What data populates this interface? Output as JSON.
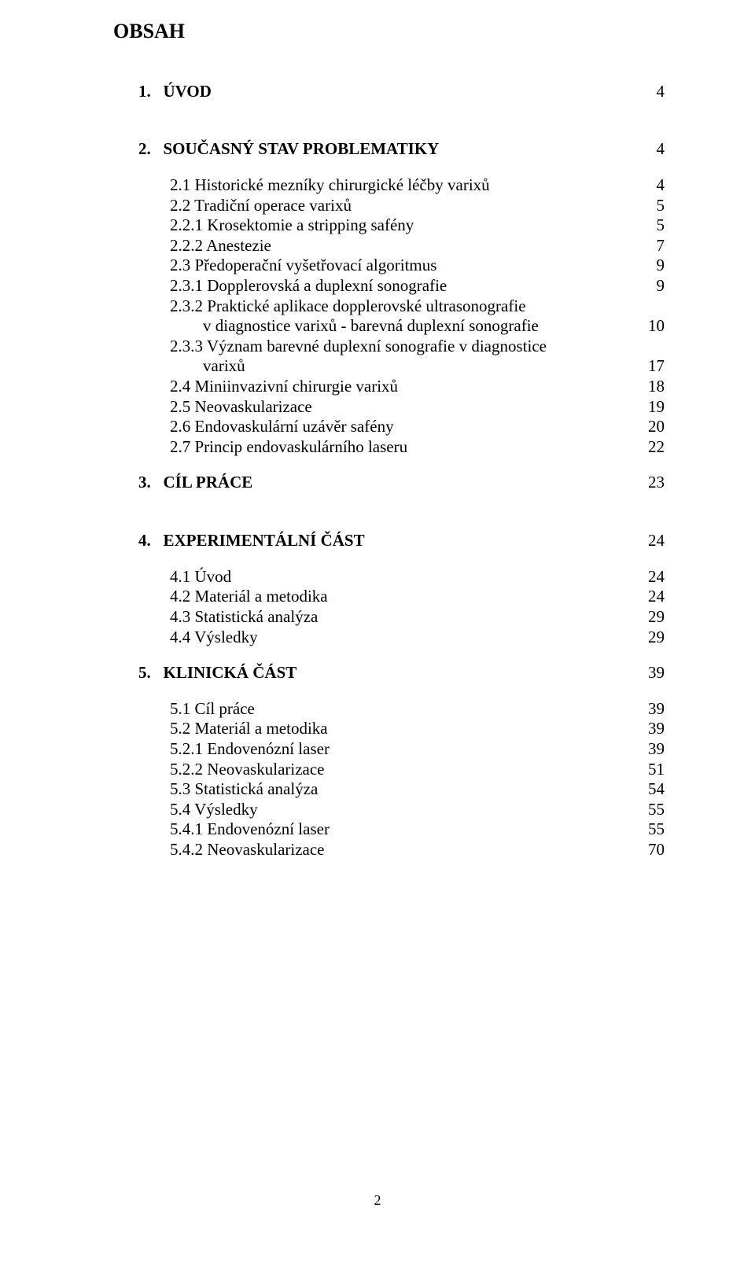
{
  "title": "OBSAH",
  "footer_page": "2",
  "colors": {
    "background": "#ffffff",
    "text": "#000000"
  },
  "typography": {
    "font_family": "Times New Roman",
    "body_fontsize_pt": 16,
    "title_fontsize_pt": 20,
    "title_weight": "bold",
    "l1_weight": "bold"
  },
  "toc": {
    "s1": {
      "num": "1.",
      "label": "ÚVOD",
      "page": "4"
    },
    "s2": {
      "num": "2.",
      "label": "SOUČASNÝ STAV PROBLEMATIKY",
      "page": "4",
      "i21": {
        "label": "2.1 Historické mezníky chirurgické léčby varixů",
        "page": "4"
      },
      "i22": {
        "label": "2.2 Tradiční operace varixů",
        "page": "5"
      },
      "i221": {
        "label": "2.2.1 Krosektomie a stripping safény",
        "page": "5"
      },
      "i222": {
        "label": "2.2.2 Anestezie",
        "page": "7"
      },
      "i23": {
        "label": "2.3 Předoperační vyšetřovací algoritmus",
        "page": "9"
      },
      "i231": {
        "label": "2.3.1 Dopplerovská a duplexní sonografie",
        "page": "9"
      },
      "i232a": {
        "label": "2.3.2 Praktické aplikace dopplerovské ultrasonografie"
      },
      "i232b": {
        "label": "v diagnostice varixů - barevná duplexní sonografie",
        "page": "10"
      },
      "i233a": {
        "label": "2.3.3 Význam barevné duplexní sonografie v diagnostice"
      },
      "i233b": {
        "label": "varixů",
        "page": "17"
      },
      "i24": {
        "label": "2.4 Miniinvazivní chirurgie varixů",
        "page": "18"
      },
      "i25": {
        "label": "2.5 Neovaskularizace",
        "page": "19"
      },
      "i26": {
        "label": "2.6 Endovaskulární uzávěr safény",
        "page": "20"
      },
      "i27": {
        "label": "2.7 Princip endovaskulárního laseru",
        "page": "22"
      }
    },
    "s3": {
      "num": "3.",
      "label": "CÍL  PRÁCE",
      "page": "23"
    },
    "s4": {
      "num": "4.",
      "label": "EXPERIMENTÁLNÍ  ČÁST",
      "page": "24",
      "i41": {
        "label": "4.1 Úvod",
        "page": "24"
      },
      "i42": {
        "label": "4.2 Materiál a metodika",
        "page": "24"
      },
      "i43": {
        "label": "4.3 Statistická analýza",
        "page": "29"
      },
      "i44": {
        "label": "4.4 Výsledky",
        "page": "29"
      }
    },
    "s5": {
      "num": "5.",
      "label": "KLINICKÁ  ČÁST",
      "page": "39",
      "i51": {
        "label": "5.1  Cíl práce",
        "page": "39"
      },
      "i52": {
        "label": "5.2  Materiál a metodika",
        "page": "39"
      },
      "i521": {
        "label": "5.2.1 Endovenózní laser",
        "page": "39"
      },
      "i522": {
        "label": "5.2.2 Neovaskularizace",
        "page": "51"
      },
      "i53": {
        "label": "5.3 Statistická analýza",
        "page": "54"
      },
      "i54": {
        "label": "5.4 Výsledky",
        "page": "55"
      },
      "i541": {
        "label": "5.4.1 Endovenózní laser",
        "page": "55"
      },
      "i542": {
        "label": "5.4.2 Neovaskularizace",
        "page": "70"
      }
    }
  }
}
